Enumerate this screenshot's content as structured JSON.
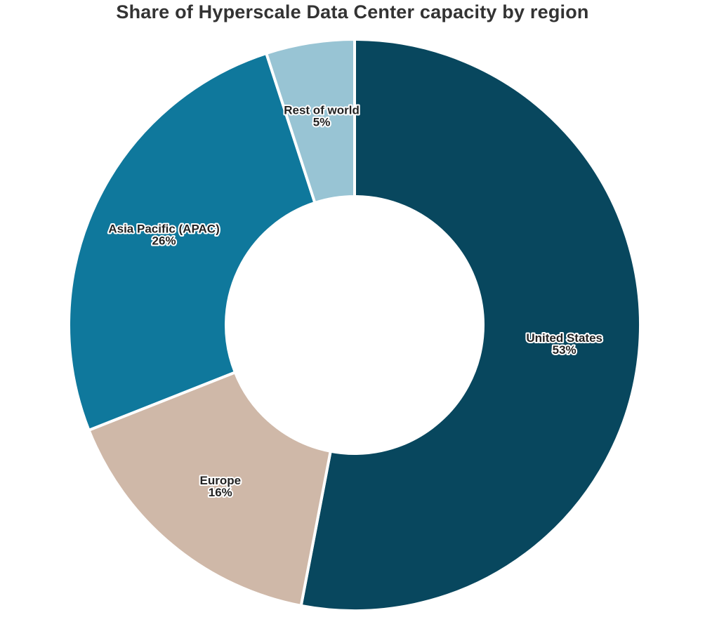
{
  "chart_data": {
    "type": "pie",
    "donut": true,
    "title": "Share of Hyperscale Data Center capacity by region",
    "start_angle_deg": 0,
    "direction": "clockwise",
    "slices": [
      {
        "label": "United States",
        "value": 53,
        "value_label": "53%",
        "color": "#08475e"
      },
      {
        "label": "Europe",
        "value": 16,
        "value_label": "16%",
        "color": "#cfb8a8"
      },
      {
        "label": "Asia Pacific (APAC)",
        "value": 26,
        "value_label": "26%",
        "color": "#0f789c"
      },
      {
        "label": "Rest of world",
        "value": 5,
        "value_label": "5%",
        "color": "#98c4d4"
      }
    ]
  }
}
